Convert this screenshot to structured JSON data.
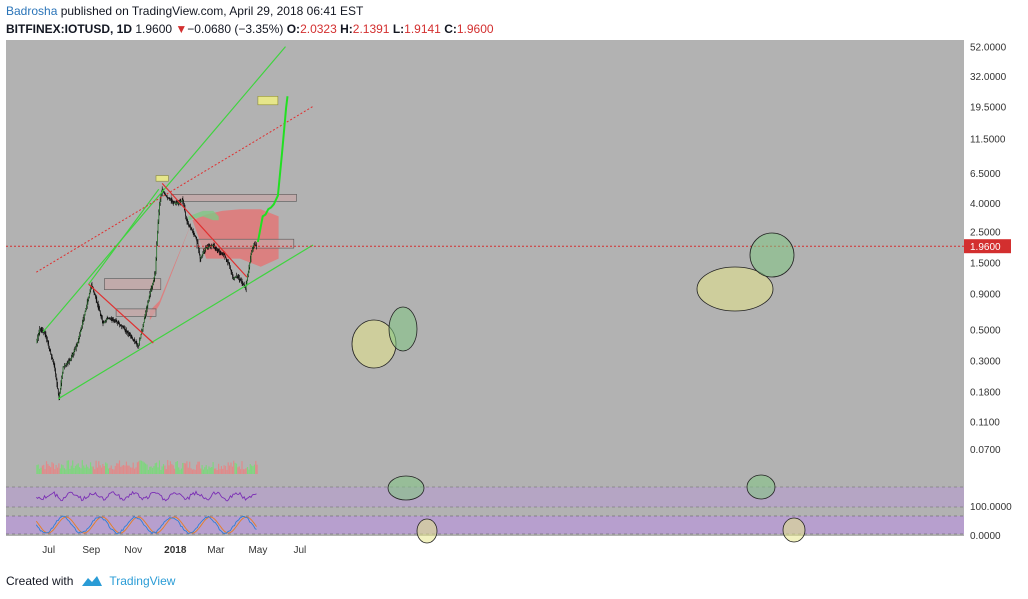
{
  "header": {
    "author": "Badrosha",
    "published_text": " published on TradingView.com, April 29, 2018 06:41 EST",
    "symbol": "BITFINEX:IOTUSD, 1D",
    "price": "1.9600",
    "change_arrow": "▼",
    "change": "−0.0680 (−3.35%)",
    "o_label": "O:",
    "o_value": "2.0323",
    "h_label": "H:",
    "h_value": "2.1391",
    "l_label": "L:",
    "l_value": "1.9141",
    "c_label": "C:",
    "c_value": "1.9600"
  },
  "footer": {
    "created_with": "Created with",
    "brand": "TradingView"
  },
  "colors": {
    "chart_bg": "#b2b2b2",
    "scale_bg": "#ffffff",
    "price_tag": "#d32f2f",
    "trendline_green": "#3fd43f",
    "trendline_red": "#e03030",
    "cloud_red": "#e57373",
    "cloud_green": "#81c784",
    "zone_gray": "#c8a6a6",
    "zone_yellow": "#e6e68a",
    "rsi_panel": "#b89ad4",
    "rsi_line": "#7b2fb5",
    "stoch_k": "#2f7fd6",
    "stoch_d": "#e67e22"
  },
  "chart_data": {
    "type": "candlestick",
    "log_scale": true,
    "x_ticks": [
      "Jul",
      "Sep",
      "Nov",
      "2018",
      "Mar",
      "May",
      "Jul"
    ],
    "y_ticks": [
      "52.0000",
      "32.0000",
      "19.5000",
      "11.5000",
      "6.5000",
      "4.0000",
      "2.5000",
      "1.5000",
      "0.9000",
      "0.5000",
      "0.3000",
      "0.1800",
      "0.1100",
      "0.0700"
    ],
    "last_price": "1.9600",
    "indicator_ticks": [
      "100.0000",
      "0.0000"
    ],
    "ylim": [
      0.05,
      55
    ],
    "price_path": [
      [
        "2017-06-13",
        0.4
      ],
      [
        "2017-06-18",
        0.5
      ],
      [
        "2017-06-25",
        0.48
      ],
      [
        "2017-07-03",
        0.35
      ],
      [
        "2017-07-10",
        0.26
      ],
      [
        "2017-07-16",
        0.16
      ],
      [
        "2017-07-22",
        0.27
      ],
      [
        "2017-08-01",
        0.3
      ],
      [
        "2017-08-12",
        0.4
      ],
      [
        "2017-08-24",
        0.7
      ],
      [
        "2017-09-01",
        1.05
      ],
      [
        "2017-09-06",
        0.88
      ],
      [
        "2017-09-12",
        0.7
      ],
      [
        "2017-09-18",
        0.55
      ],
      [
        "2017-09-25",
        0.6
      ],
      [
        "2017-10-05",
        0.58
      ],
      [
        "2017-10-20",
        0.5
      ],
      [
        "2017-11-01",
        0.42
      ],
      [
        "2017-11-08",
        0.38
      ],
      [
        "2017-11-14",
        0.5
      ],
      [
        "2017-11-20",
        0.7
      ],
      [
        "2017-11-25",
        0.9
      ],
      [
        "2017-11-30",
        1.1
      ],
      [
        "2017-12-03",
        1.3
      ],
      [
        "2017-12-06",
        2.5
      ],
      [
        "2017-12-09",
        4.0
      ],
      [
        "2017-12-13",
        5.0
      ],
      [
        "2017-12-18",
        4.5
      ],
      [
        "2017-12-24",
        4.2
      ],
      [
        "2017-12-30",
        4.0
      ],
      [
        "2018-01-06",
        4.0
      ],
      [
        "2018-01-12",
        4.2
      ],
      [
        "2018-01-17",
        3.0
      ],
      [
        "2018-01-24",
        2.6
      ],
      [
        "2018-02-01",
        2.2
      ],
      [
        "2018-02-06",
        1.6
      ],
      [
        "2018-02-14",
        1.9
      ],
      [
        "2018-02-25",
        2.0
      ],
      [
        "2018-03-05",
        1.8
      ],
      [
        "2018-03-13",
        1.7
      ],
      [
        "2018-03-20",
        1.45
      ],
      [
        "2018-03-26",
        1.15
      ],
      [
        "2018-03-31",
        1.2
      ],
      [
        "2018-04-07",
        1.1
      ],
      [
        "2018-04-13",
        0.98
      ],
      [
        "2018-04-17",
        1.3
      ],
      [
        "2018-04-21",
        1.7
      ],
      [
        "2018-04-25",
        2.05
      ],
      [
        "2018-04-29",
        1.96
      ]
    ],
    "projection_path": [
      [
        "2018-05-01",
        2.1
      ],
      [
        "2018-05-08",
        3.2
      ],
      [
        "2018-05-12",
        3.3
      ],
      [
        "2018-05-16",
        3.6
      ],
      [
        "2018-05-20",
        3.7
      ],
      [
        "2018-05-24",
        3.9
      ],
      [
        "2018-05-30",
        4.5
      ],
      [
        "2018-06-05",
        9.0
      ],
      [
        "2018-06-11",
        19.0
      ],
      [
        "2018-06-13",
        23.0
      ]
    ],
    "green_channel_upper": [
      [
        "2017-06-23",
        0.48
      ],
      [
        "2018-06-10",
        52.0
      ]
    ],
    "green_channel_lower": [
      [
        "2017-07-15",
        0.16
      ],
      [
        "2018-07-20",
        2.0
      ]
    ],
    "green_mid_line": [
      [
        "2017-08-28",
        1.05
      ],
      [
        "2017-12-08",
        5.0
      ]
    ],
    "red_dotted_line": [
      [
        "2017-06-13",
        1.28
      ],
      [
        "2018-07-20",
        19.5
      ]
    ],
    "red_line_1": [
      [
        "2017-08-28",
        1.05
      ],
      [
        "2017-11-30",
        0.4
      ]
    ],
    "red_line_2": [
      [
        "2017-12-13",
        5.5
      ],
      [
        "2018-04-15",
        1.18
      ]
    ],
    "gray_zones": [
      {
        "x1": "2017-09-20",
        "x2": "2017-12-11",
        "y1": 0.96,
        "y2": 1.15
      },
      {
        "x1": "2017-10-07",
        "x2": "2017-12-04",
        "y1": 0.62,
        "y2": 0.7
      },
      {
        "x1": "2017-12-26",
        "x2": "2018-06-26",
        "y1": 4.1,
        "y2": 4.6
      },
      {
        "x1": "2018-02-01",
        "x2": "2018-06-22",
        "y1": 1.9,
        "y2": 2.2
      }
    ],
    "yellow_zones": [
      {
        "x1": "2017-12-04",
        "x2": "2017-12-22",
        "y1": 5.7,
        "y2": 6.25
      },
      {
        "x1": "2018-05-01",
        "x2": "2018-05-30",
        "y1": 20.0,
        "y2": 23.0
      }
    ],
    "red_cloud": [
      [
        "2017-11-25",
        0.58,
        0.68
      ],
      [
        "2017-12-09",
        0.75,
        0.8
      ],
      [
        "2018-01-26",
        3.0,
        3.0
      ],
      [
        "2018-02-15",
        1.6,
        3.3
      ],
      [
        "2018-03-10",
        1.6,
        3.5
      ],
      [
        "2018-04-05",
        1.6,
        3.6
      ],
      [
        "2018-05-05",
        1.4,
        3.6
      ],
      [
        "2018-05-31",
        1.6,
        3.2
      ]
    ],
    "green_cloud": [
      [
        "2018-01-20",
        3.0,
        3.2
      ],
      [
        "2018-02-10",
        3.2,
        3.5
      ],
      [
        "2018-02-25",
        3.0,
        3.5
      ],
      [
        "2018-03-05",
        3.0,
        3.2
      ]
    ]
  }
}
